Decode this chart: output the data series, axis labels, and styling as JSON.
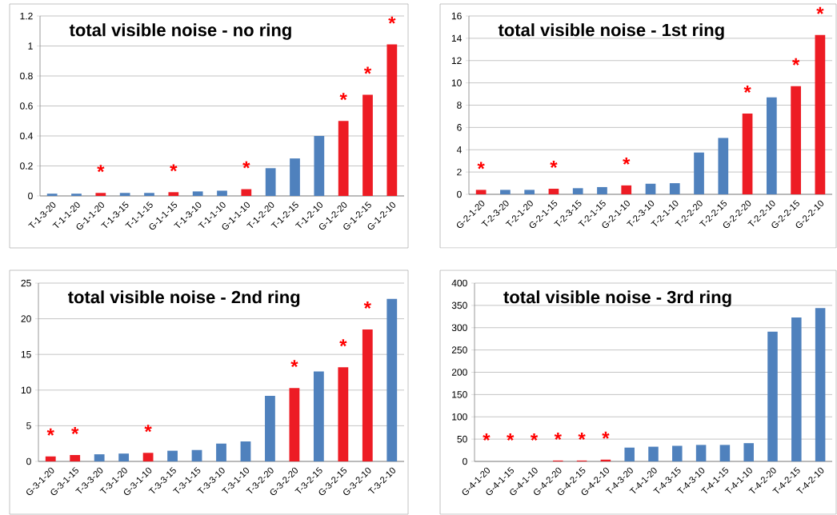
{
  "chart_data": [
    {
      "type": "bar",
      "title": "total visible noise - no ring",
      "grid": "y",
      "ylim": [
        0,
        1.2
      ],
      "yticks": [
        0,
        0.2,
        0.4,
        0.6,
        0.8,
        1,
        1.2
      ],
      "categories": [
        "T-1-3-20",
        "T-1-1-20",
        "G-1-1-20",
        "T-1-3-15",
        "T-1-1-15",
        "G-1-1-15",
        "T-1-3-10",
        "T-1-1-10",
        "G-1-1-10",
        "T-1-2-20",
        "T-1-2-15",
        "T-1-2-10",
        "G-1-2-20",
        "G-1-2-15",
        "G-1-2-10"
      ],
      "values": [
        0.015,
        0.015,
        0.02,
        0.02,
        0.02,
        0.025,
        0.03,
        0.035,
        0.045,
        0.185,
        0.25,
        0.4,
        0.5,
        0.675,
        1.01
      ],
      "colors": [
        "#4f81bd",
        "#4f81bd",
        "#ed1c24",
        "#4f81bd",
        "#4f81bd",
        "#ed1c24",
        "#4f81bd",
        "#4f81bd",
        "#ed1c24",
        "#4f81bd",
        "#4f81bd",
        "#4f81bd",
        "#ed1c24",
        "#ed1c24",
        "#ed1c24"
      ],
      "annotations": [
        {
          "text": "*",
          "x": "G-1-1-20",
          "y": 0.02
        },
        {
          "text": "*",
          "x": "G-1-1-15",
          "y": 0.025
        },
        {
          "text": "*",
          "x": "G-1-1-10",
          "y": 0.045
        },
        {
          "text": "*",
          "x": "G-1-2-20",
          "y": 0.5
        },
        {
          "text": "*",
          "x": "G-1-2-15",
          "y": 0.675
        },
        {
          "text": "*",
          "x": "G-1-2-10",
          "y": 1.01
        }
      ]
    },
    {
      "type": "bar",
      "title": "total visible noise - 1st ring",
      "grid": "y",
      "ylim": [
        0,
        16
      ],
      "yticks": [
        0,
        2,
        4,
        6,
        8,
        10,
        12,
        14,
        16
      ],
      "categories": [
        "G-2-1-20",
        "T-2-3-20",
        "T-2-1-20",
        "G-2-1-15",
        "T-2-3-15",
        "T-2-1-15",
        "G-2-1-10",
        "T-2-3-10",
        "T-2-1-10",
        "T-2-2-20",
        "T-2-2-15",
        "G-2-2-20",
        "T-2-2-10",
        "G-2-2-15",
        "G-2-2-10"
      ],
      "values": [
        0.4,
        0.4,
        0.4,
        0.5,
        0.55,
        0.65,
        0.8,
        0.95,
        1.0,
        3.75,
        5.05,
        7.25,
        8.7,
        9.7,
        14.3
      ],
      "colors": [
        "#ed1c24",
        "#4f81bd",
        "#4f81bd",
        "#ed1c24",
        "#4f81bd",
        "#4f81bd",
        "#ed1c24",
        "#4f81bd",
        "#4f81bd",
        "#4f81bd",
        "#4f81bd",
        "#ed1c24",
        "#4f81bd",
        "#ed1c24",
        "#ed1c24"
      ],
      "annotations": [
        {
          "text": "*",
          "x": "G-2-1-20",
          "y": 0.4
        },
        {
          "text": "*",
          "x": "G-2-1-15",
          "y": 0.5
        },
        {
          "text": "*",
          "x": "G-2-1-10",
          "y": 0.8
        },
        {
          "text": "*",
          "x": "G-2-2-20",
          "y": 7.25
        },
        {
          "text": "*",
          "x": "G-2-2-15",
          "y": 9.7
        },
        {
          "text": "*",
          "x": "G-2-2-10",
          "y": 14.3
        }
      ]
    },
    {
      "type": "bar",
      "title": "total visible noise - 2nd ring",
      "grid": "y",
      "ylim": [
        0,
        25
      ],
      "yticks": [
        0,
        5,
        10,
        15,
        20,
        25
      ],
      "categories": [
        "G-3-1-20",
        "G-3-1-15",
        "T-3-3-20",
        "T-3-1-20",
        "G-3-1-10",
        "T-3-3-15",
        "T-3-1-15",
        "T-3-3-10",
        "T-3-1-10",
        "T-3-2-20",
        "G-3-2-20",
        "T-3-2-15",
        "G-3-2-15",
        "G-3-2-10",
        "T-3-2-10"
      ],
      "values": [
        0.7,
        0.9,
        1.0,
        1.1,
        1.2,
        1.5,
        1.6,
        2.5,
        2.8,
        9.2,
        10.3,
        12.6,
        13.2,
        18.5,
        22.8
      ],
      "colors": [
        "#ed1c24",
        "#ed1c24",
        "#4f81bd",
        "#4f81bd",
        "#ed1c24",
        "#4f81bd",
        "#4f81bd",
        "#4f81bd",
        "#4f81bd",
        "#4f81bd",
        "#ed1c24",
        "#4f81bd",
        "#ed1c24",
        "#ed1c24",
        "#4f81bd"
      ],
      "annotations": [
        {
          "text": "*",
          "x": "G-3-1-20",
          "y": 0.7
        },
        {
          "text": "*",
          "x": "G-3-1-15",
          "y": 0.9
        },
        {
          "text": "*",
          "x": "G-3-1-10",
          "y": 1.2
        },
        {
          "text": "*",
          "x": "G-3-2-20",
          "y": 10.3
        },
        {
          "text": "*",
          "x": "G-3-2-15",
          "y": 13.2
        },
        {
          "text": "*",
          "x": "G-3-2-10",
          "y": 18.5
        }
      ]
    },
    {
      "type": "bar",
      "title": "total visible noise - 3rd ring",
      "grid": "y",
      "ylim": [
        0,
        400
      ],
      "yticks": [
        0,
        50,
        100,
        150,
        200,
        250,
        300,
        350,
        400
      ],
      "categories": [
        "G-4-1-20",
        "G-4-1-15",
        "G-4-1-10",
        "G-4-2-20",
        "G-4-2-15",
        "G-4-2-10",
        "T-4-3-20",
        "T-4-1-20",
        "T-4-3-15",
        "T-4-3-10",
        "T-4-1-15",
        "T-4-1-10",
        "T-4-2-20",
        "T-4-2-15",
        "T-4-2-10"
      ],
      "values": [
        0,
        0,
        0,
        2,
        2,
        4,
        31,
        33,
        35,
        37,
        37,
        41,
        291,
        323,
        344
      ],
      "colors": [
        "#ed1c24",
        "#ed1c24",
        "#ed1c24",
        "#ed1c24",
        "#ed1c24",
        "#ed1c24",
        "#4f81bd",
        "#4f81bd",
        "#4f81bd",
        "#4f81bd",
        "#4f81bd",
        "#4f81bd",
        "#4f81bd",
        "#4f81bd",
        "#4f81bd"
      ],
      "annotations": [
        {
          "text": "*",
          "x": "G-4-1-20",
          "y": 0
        },
        {
          "text": "*",
          "x": "G-4-1-15",
          "y": 0
        },
        {
          "text": "*",
          "x": "G-4-1-10",
          "y": 0
        },
        {
          "text": "*",
          "x": "G-4-2-20",
          "y": 2
        },
        {
          "text": "*",
          "x": "G-4-2-15",
          "y": 2
        },
        {
          "text": "*",
          "x": "G-4-2-10",
          "y": 4
        }
      ]
    }
  ]
}
